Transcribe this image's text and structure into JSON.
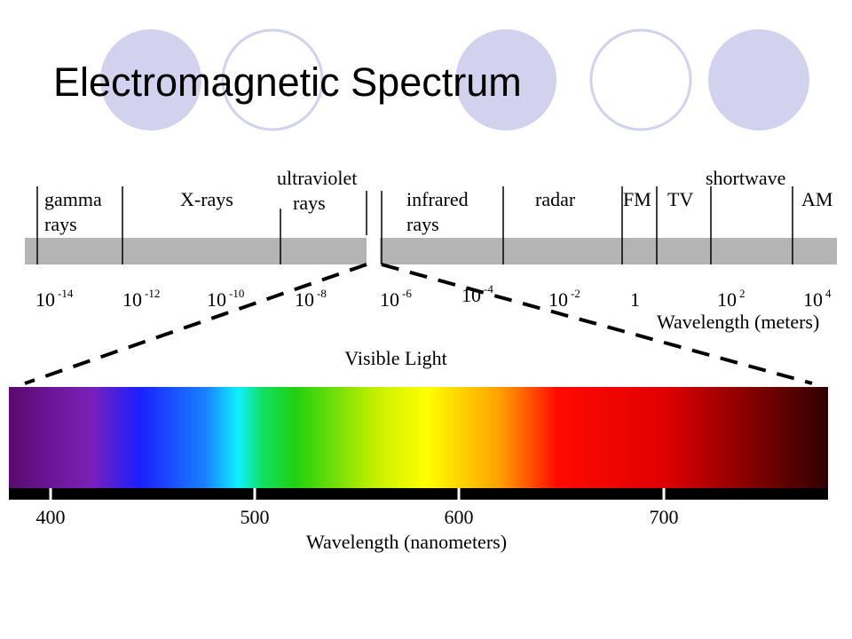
{
  "title": "Electromagnetic Spectrum",
  "bands": [
    {
      "lines": [
        "gamma",
        "rays"
      ]
    },
    {
      "lines": [
        "X-rays"
      ]
    },
    {
      "lines": [
        "ultraviolet",
        "rays"
      ]
    },
    {
      "lines": [
        "infrared",
        "rays"
      ]
    },
    {
      "lines": [
        "radar"
      ]
    },
    {
      "lines": [
        "FM"
      ]
    },
    {
      "lines": [
        "TV"
      ]
    },
    {
      "lines": [
        "shortwave"
      ]
    },
    {
      "lines": [
        "AM"
      ]
    }
  ],
  "wavelength_ticks": [
    {
      "base": "10",
      "exp": "-14"
    },
    {
      "base": "10",
      "exp": "-12"
    },
    {
      "base": "10",
      "exp": "-10"
    },
    {
      "base": "10",
      "exp": "-8"
    },
    {
      "base": "10",
      "exp": "-6"
    },
    {
      "base": "10",
      "exp": "-4"
    },
    {
      "base": "10",
      "exp": "-2"
    },
    {
      "base": "1"
    },
    {
      "base": "10",
      "exp": "2"
    },
    {
      "base": "10",
      "exp": "4"
    }
  ],
  "wavelength_axis": "Wavelength (meters)",
  "visible_title": "Visible Light",
  "nm_ticks": [
    "400",
    "500",
    "600",
    "700"
  ],
  "nm_axis": "Wavelength (nanometers)"
}
